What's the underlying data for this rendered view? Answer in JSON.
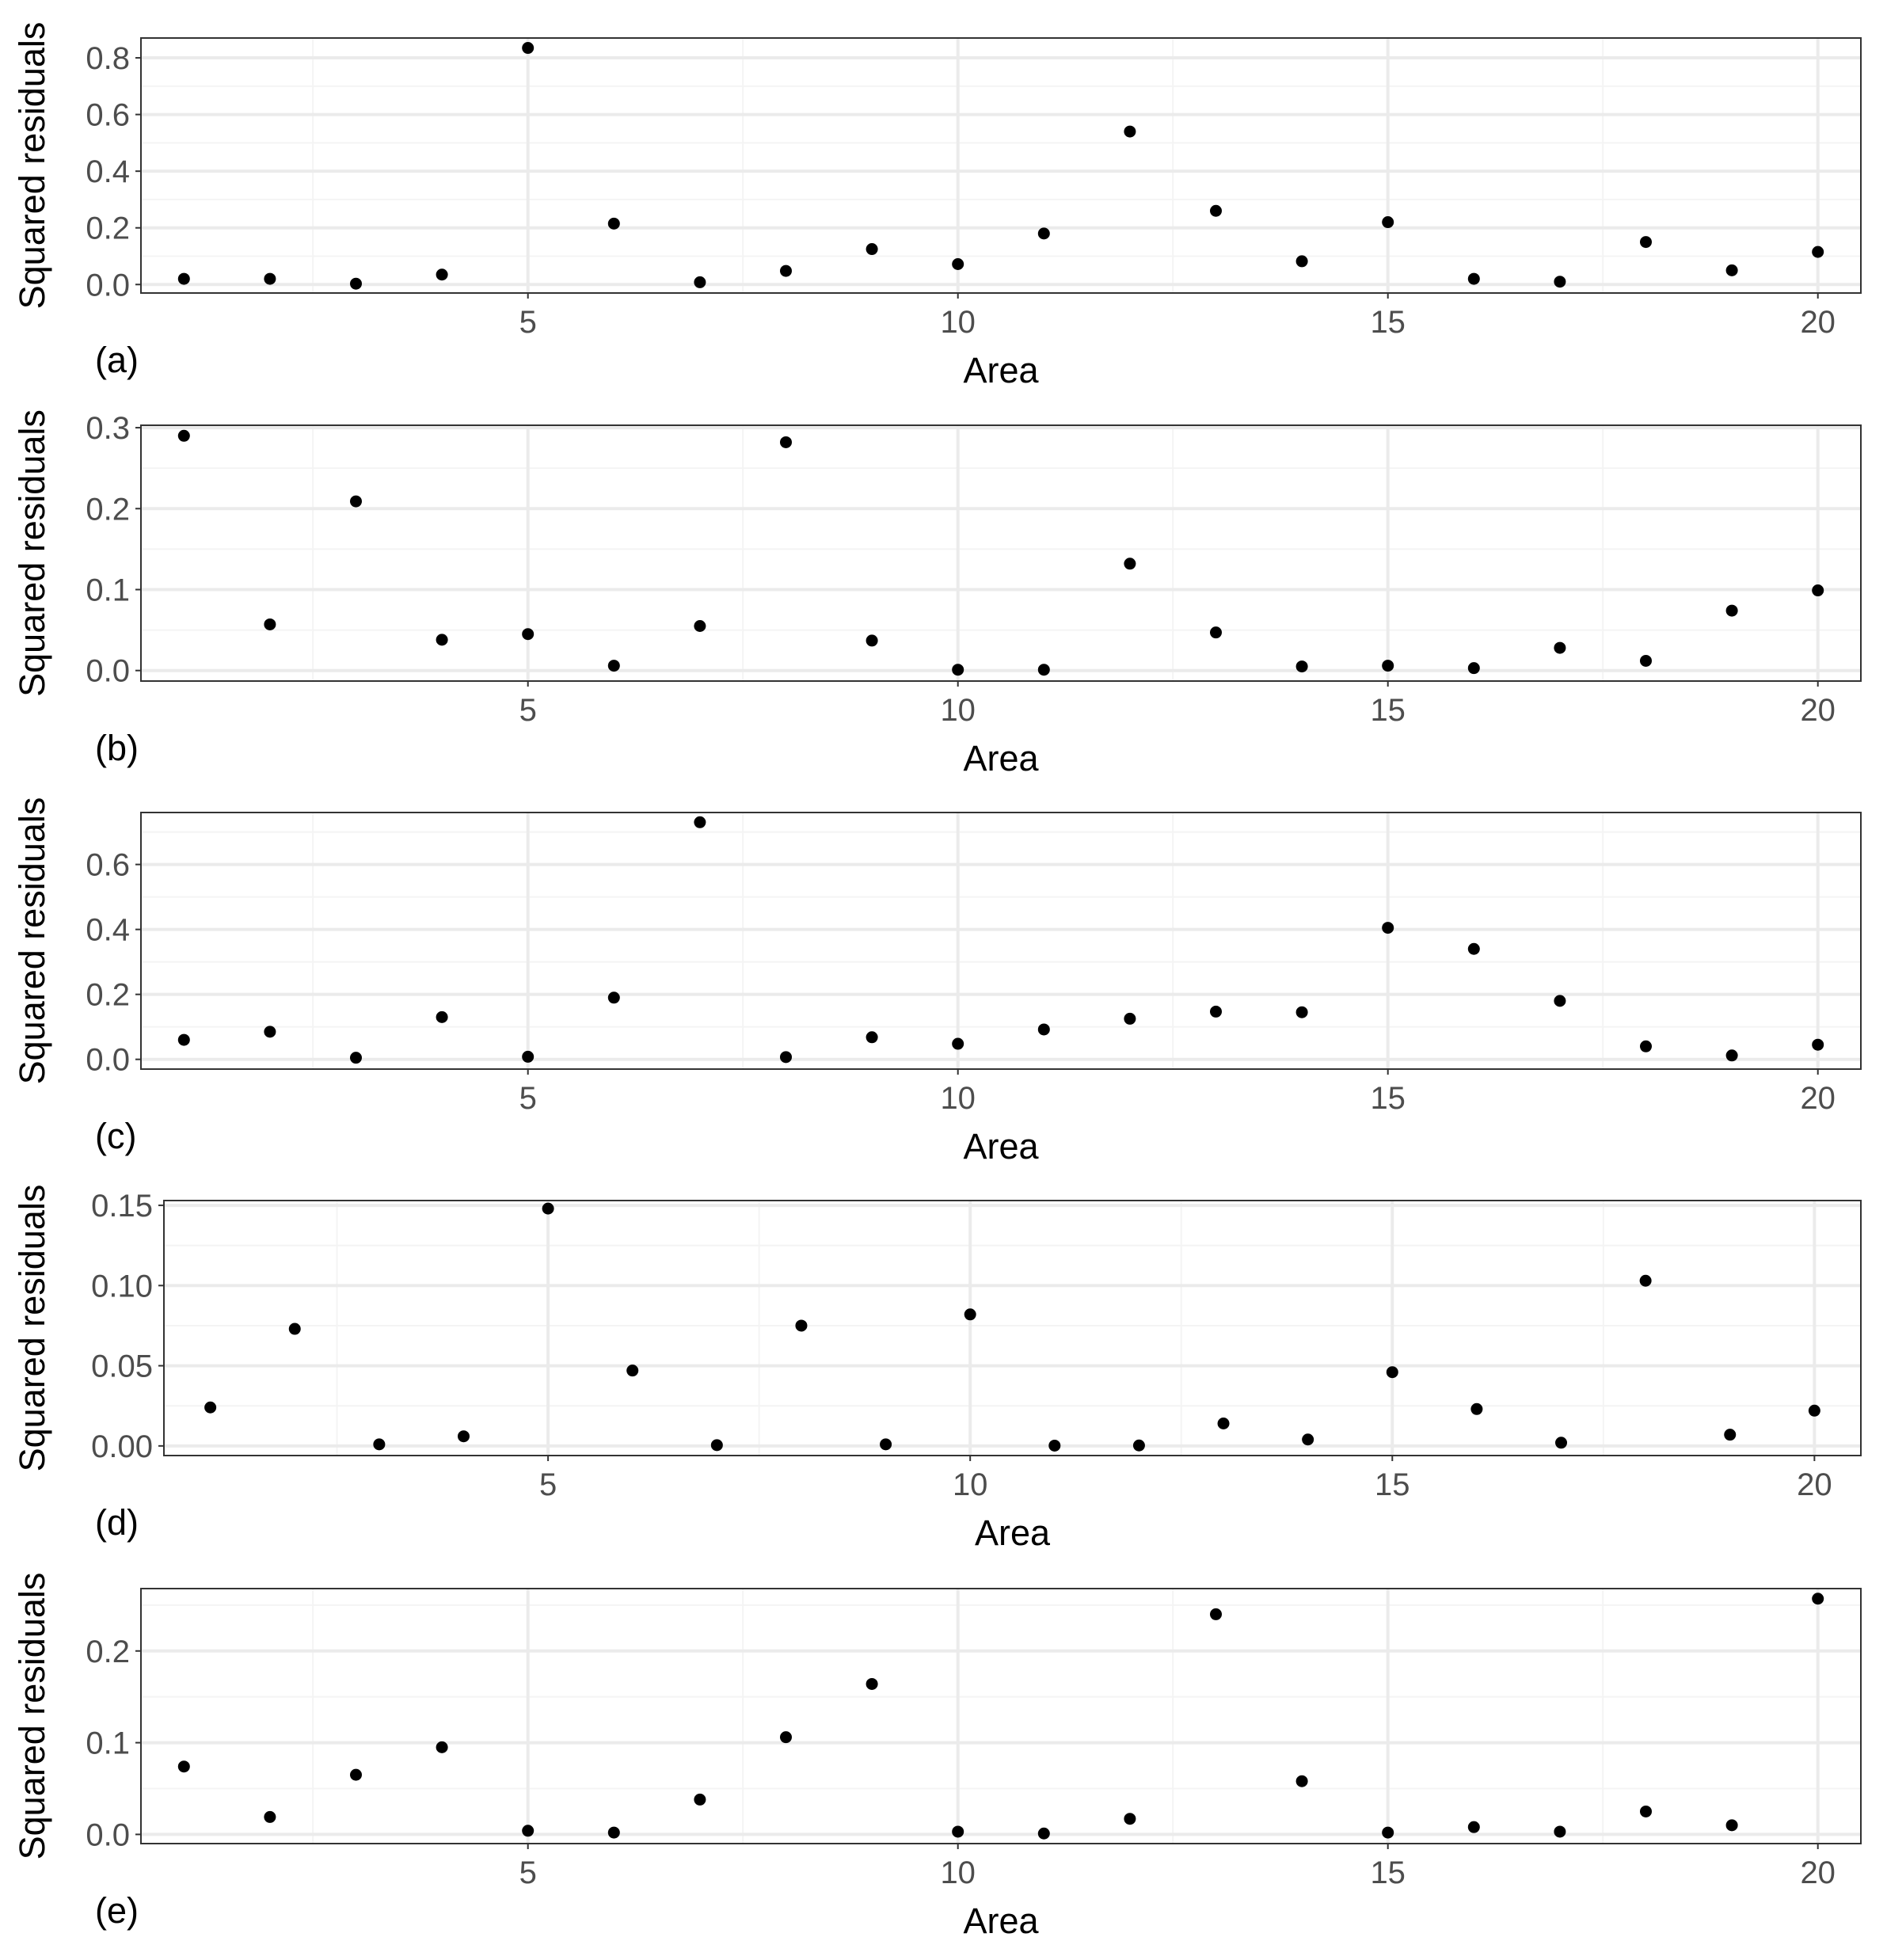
{
  "colors": {
    "point": "#000000",
    "panel_background": "#ffffff",
    "panel_border": "#333333",
    "grid_major": "#ebebeb",
    "grid_minor": "#f4f4f4",
    "tick_text": "#4d4d4d"
  },
  "chart_data": [
    {
      "type": "scatter",
      "panel_label": "(a)",
      "xlabel": "Area",
      "ylabel": "Squared residuals",
      "xlim": [
        0.5,
        20.5
      ],
      "ylim": [
        -0.03,
        0.87
      ],
      "xticks": [
        5,
        10,
        15,
        20
      ],
      "yticks": [
        0.0,
        0.2,
        0.4,
        0.6,
        0.8
      ],
      "ytick_labels": [
        "0.0",
        "0.2",
        "0.4",
        "0.6",
        "0.8"
      ],
      "grid": true,
      "x": [
        1,
        2,
        3,
        4,
        5,
        6,
        7,
        8,
        9,
        10,
        11,
        12,
        13,
        14,
        15,
        16,
        17,
        18,
        19,
        20
      ],
      "y": [
        0.02,
        0.02,
        0.003,
        0.035,
        0.835,
        0.215,
        0.008,
        0.048,
        0.125,
        0.072,
        0.18,
        0.54,
        0.26,
        0.082,
        0.22,
        0.02,
        0.01,
        0.15,
        0.05,
        0.115
      ]
    },
    {
      "type": "scatter",
      "panel_label": "(b)",
      "xlabel": "Area",
      "ylabel": "Squared residuals",
      "xlim": [
        0.5,
        20.5
      ],
      "ylim": [
        -0.013,
        0.303
      ],
      "xticks": [
        5,
        10,
        15,
        20
      ],
      "yticks": [
        0.0,
        0.1,
        0.2,
        0.3
      ],
      "ytick_labels": [
        "0.0",
        "0.1",
        "0.2",
        "0.3"
      ],
      "grid": true,
      "x": [
        1,
        2,
        3,
        4,
        5,
        6,
        7,
        8,
        9,
        10,
        11,
        12,
        13,
        14,
        15,
        16,
        17,
        18,
        19,
        20
      ],
      "y": [
        0.29,
        0.057,
        0.209,
        0.038,
        0.045,
        0.006,
        0.055,
        0.282,
        0.037,
        0.001,
        0.001,
        0.132,
        0.047,
        0.005,
        0.006,
        0.003,
        0.028,
        0.012,
        0.074,
        0.099
      ]
    },
    {
      "type": "scatter",
      "panel_label": "(c)",
      "xlabel": "Area",
      "ylabel": "Squared residuals",
      "xlim": [
        0.5,
        20.5
      ],
      "ylim": [
        -0.03,
        0.76
      ],
      "xticks": [
        5,
        10,
        15,
        20
      ],
      "yticks": [
        0.0,
        0.2,
        0.4,
        0.6
      ],
      "ytick_labels": [
        "0.0",
        "0.2",
        "0.4",
        "0.6"
      ],
      "grid": true,
      "x": [
        1,
        2,
        3,
        4,
        5,
        6,
        7,
        8,
        9,
        10,
        11,
        12,
        13,
        14,
        15,
        16,
        17,
        18,
        19,
        20
      ],
      "y": [
        0.06,
        0.085,
        0.005,
        0.13,
        0.008,
        0.19,
        0.73,
        0.007,
        0.068,
        0.048,
        0.092,
        0.125,
        0.147,
        0.145,
        0.405,
        0.34,
        0.18,
        0.04,
        0.012,
        0.045
      ]
    },
    {
      "type": "scatter",
      "panel_label": "(d)",
      "xlabel": "Area",
      "ylabel": "Squared residuals",
      "xlim": [
        0.45,
        20.55
      ],
      "ylim": [
        -0.006,
        0.153
      ],
      "xticks": [
        5,
        10,
        15,
        20
      ],
      "yticks": [
        0.0,
        0.05,
        0.1,
        0.15
      ],
      "ytick_labels": [
        "0.00",
        "0.05",
        "0.10",
        "0.15"
      ],
      "grid": true,
      "x": [
        1,
        2,
        3,
        4,
        5,
        6,
        7,
        8,
        9,
        10,
        11,
        12,
        13,
        14,
        15,
        16,
        17,
        18,
        19,
        20
      ],
      "y": [
        0.024,
        0.073,
        0.001,
        0.006,
        0.148,
        0.047,
        0.0005,
        0.075,
        0.001,
        0.082,
        0.0002,
        0.0003,
        0.014,
        0.004,
        0.046,
        0.023,
        0.002,
        0.103,
        0.007,
        0.022
      ]
    },
    {
      "type": "scatter",
      "panel_label": "(e)",
      "xlabel": "Area",
      "ylabel": "Squared residuals",
      "xlim": [
        0.5,
        20.5
      ],
      "ylim": [
        -0.01,
        0.268
      ],
      "xticks": [
        5,
        10,
        15,
        20
      ],
      "yticks": [
        0.0,
        0.1,
        0.2
      ],
      "ytick_labels": [
        "0.0",
        "0.1",
        "0.2"
      ],
      "grid": true,
      "x": [
        1,
        2,
        3,
        4,
        5,
        6,
        7,
        8,
        9,
        10,
        11,
        12,
        13,
        14,
        15,
        16,
        17,
        18,
        19,
        20
      ],
      "y": [
        0.074,
        0.019,
        0.065,
        0.095,
        0.004,
        0.002,
        0.038,
        0.106,
        0.164,
        0.003,
        0.001,
        0.017,
        0.24,
        0.058,
        0.002,
        0.008,
        0.003,
        0.025,
        0.01,
        0.257
      ]
    }
  ]
}
